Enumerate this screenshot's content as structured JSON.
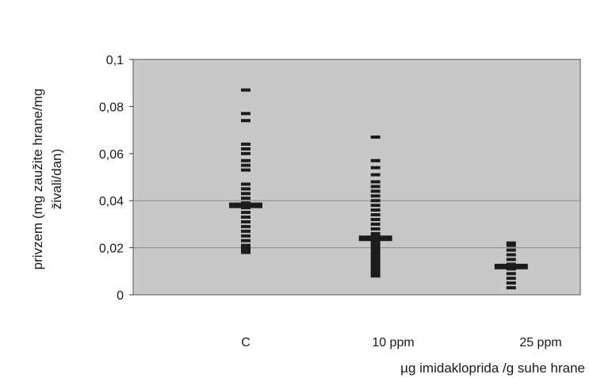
{
  "chart_data": {
    "type": "scatter",
    "title": "",
    "xlabel": "µg imidakloprida /g suhe hrane",
    "ylabel_lines": [
      "privzem (mg zaužite hrane/mg",
      "živali/dan)"
    ],
    "categories": [
      "C",
      "10 ppm",
      "25 ppm"
    ],
    "ylim": [
      0,
      0.1
    ],
    "yticks": [
      0,
      0.02,
      0.04,
      0.06,
      0.08,
      0.1
    ],
    "ytick_labels": [
      "0",
      "0,02",
      "0,04",
      "0,06",
      "0,08",
      "0,1"
    ],
    "grid_y": [
      0.02,
      0.04
    ],
    "colors": {
      "plot_bg": "#c8c8c8",
      "marker": "#1c1c1c",
      "grid": "#8a8a8a"
    },
    "series": [
      {
        "category_index": 0,
        "mean": 0.038,
        "values": [
          0.018,
          0.019,
          0.02,
          0.021,
          0.023,
          0.025,
          0.027,
          0.029,
          0.031,
          0.033,
          0.035,
          0.037,
          0.039,
          0.041,
          0.043,
          0.045,
          0.047,
          0.053,
          0.055,
          0.057,
          0.06,
          0.062,
          0.064,
          0.074,
          0.077,
          0.087
        ]
      },
      {
        "category_index": 0.88,
        "mean": 0.024,
        "values": [
          0.008,
          0.009,
          0.01,
          0.011,
          0.012,
          0.013,
          0.014,
          0.015,
          0.016,
          0.017,
          0.018,
          0.019,
          0.02,
          0.021,
          0.022,
          0.023,
          0.025,
          0.026,
          0.028,
          0.03,
          0.032,
          0.034,
          0.036,
          0.038,
          0.04,
          0.042,
          0.044,
          0.046,
          0.048,
          0.051,
          0.054,
          0.057,
          0.067
        ]
      },
      {
        "category_index": 1.8,
        "mean": 0.012,
        "values": [
          0.003,
          0.005,
          0.007,
          0.009,
          0.011,
          0.013,
          0.015,
          0.017,
          0.019,
          0.021,
          0.022
        ]
      }
    ]
  }
}
